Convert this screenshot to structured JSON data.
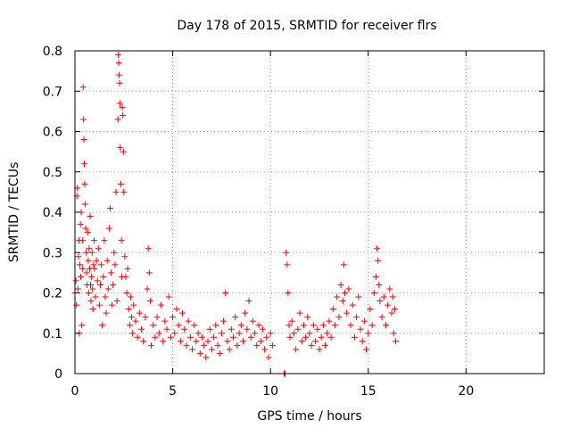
{
  "chart_data": {
    "type": "scatter",
    "title": "Day 178 of 2015, SRMTID for receiver flrs",
    "xlabel": "GPS time / hours",
    "ylabel": "SRMTID / TECUs",
    "xlim": [
      0,
      24
    ],
    "ylim": [
      0,
      0.8
    ],
    "xticks": [
      0,
      5,
      10,
      15,
      20
    ],
    "xtick_labels": [
      "0",
      "5",
      "10",
      "15",
      "20"
    ],
    "yticks": [
      0,
      0.1,
      0.2,
      0.3,
      0.4,
      0.5,
      0.6,
      0.7,
      0.8
    ],
    "ytick_labels": [
      "0",
      "0.1",
      "0.2",
      "0.3",
      "0.4",
      "0.5",
      "0.6",
      "0.7",
      "0.8"
    ],
    "grid": true,
    "marker": "+",
    "color": "#ff0000",
    "series": [
      {
        "name": "SRMTID flrs",
        "points": [
          [
            0.0,
            0.2
          ],
          [
            0.05,
            0.23
          ],
          [
            0.08,
            0.17
          ],
          [
            0.1,
            0.44
          ],
          [
            0.12,
            0.46
          ],
          [
            0.15,
            0.21
          ],
          [
            0.18,
            0.29
          ],
          [
            0.2,
            0.33
          ],
          [
            0.22,
            0.1
          ],
          [
            0.25,
            0.27
          ],
          [
            0.28,
            0.37
          ],
          [
            0.3,
            0.24
          ],
          [
            0.32,
            0.4
          ],
          [
            0.35,
            0.12
          ],
          [
            0.38,
            0.26
          ],
          [
            0.4,
            0.33
          ],
          [
            0.42,
            0.71
          ],
          [
            0.44,
            0.63
          ],
          [
            0.46,
            0.58
          ],
          [
            0.48,
            0.52
          ],
          [
            0.5,
            0.47
          ],
          [
            0.52,
            0.42
          ],
          [
            0.55,
            0.36
          ],
          [
            0.58,
            0.3
          ],
          [
            0.6,
            0.25
          ],
          [
            0.62,
            0.22
          ],
          [
            0.65,
            0.35
          ],
          [
            0.68,
            0.28
          ],
          [
            0.7,
            0.2
          ],
          [
            0.72,
            0.31
          ],
          [
            0.75,
            0.26
          ],
          [
            0.78,
            0.39
          ],
          [
            0.8,
            0.22
          ],
          [
            0.82,
            0.18
          ],
          [
            0.85,
            0.24
          ],
          [
            0.88,
            0.3
          ],
          [
            0.9,
            0.21
          ],
          [
            0.92,
            0.16
          ],
          [
            0.95,
            0.27
          ],
          [
            0.98,
            0.33
          ],
          [
            1.0,
            0.26
          ],
          [
            1.05,
            0.19
          ],
          [
            1.1,
            0.28
          ],
          [
            1.15,
            0.23
          ],
          [
            1.2,
            0.31
          ],
          [
            1.25,
            0.17
          ],
          [
            1.3,
            0.22
          ],
          [
            1.35,
            0.27
          ],
          [
            1.4,
            0.12
          ],
          [
            1.45,
            0.24
          ],
          [
            1.5,
            0.33
          ],
          [
            1.55,
            0.19
          ],
          [
            1.6,
            0.15
          ],
          [
            1.65,
            0.28
          ],
          [
            1.7,
            0.21
          ],
          [
            1.75,
            0.36
          ],
          [
            1.8,
            0.41
          ],
          [
            1.85,
            0.25
          ],
          [
            1.9,
            0.17
          ],
          [
            1.95,
            0.22
          ],
          [
            2.0,
            0.3
          ],
          [
            2.05,
            0.27
          ],
          [
            2.1,
            0.45
          ],
          [
            2.15,
            0.18
          ],
          [
            2.2,
            0.63
          ],
          [
            2.22,
            0.79
          ],
          [
            2.24,
            0.77
          ],
          [
            2.26,
            0.74
          ],
          [
            2.28,
            0.72
          ],
          [
            2.3,
            0.67
          ],
          [
            2.32,
            0.56
          ],
          [
            2.35,
            0.47
          ],
          [
            2.38,
            0.33
          ],
          [
            2.4,
            0.24
          ],
          [
            2.42,
            0.66
          ],
          [
            2.45,
            0.64
          ],
          [
            2.48,
            0.55
          ],
          [
            2.5,
            0.45
          ],
          [
            2.55,
            0.29
          ],
          [
            2.6,
            0.24
          ],
          [
            2.65,
            0.2
          ],
          [
            2.7,
            0.26
          ],
          [
            2.75,
            0.16
          ],
          [
            2.8,
            0.12
          ],
          [
            2.85,
            0.19
          ],
          [
            2.9,
            0.14
          ],
          [
            2.95,
            0.1
          ],
          [
            3.0,
            0.17
          ],
          [
            3.1,
            0.13
          ],
          [
            3.2,
            0.09
          ],
          [
            3.3,
            0.15
          ],
          [
            3.4,
            0.11
          ],
          [
            3.5,
            0.08
          ],
          [
            3.6,
            0.14
          ],
          [
            3.7,
            0.21
          ],
          [
            3.75,
            0.31
          ],
          [
            3.8,
            0.25
          ],
          [
            3.85,
            0.18
          ],
          [
            3.9,
            0.07
          ],
          [
            4.0,
            0.12
          ],
          [
            4.1,
            0.09
          ],
          [
            4.2,
            0.14
          ],
          [
            4.3,
            0.1
          ],
          [
            4.4,
            0.17
          ],
          [
            4.5,
            0.08
          ],
          [
            4.6,
            0.13
          ],
          [
            4.7,
            0.11
          ],
          [
            4.8,
            0.19
          ],
          [
            4.9,
            0.09
          ],
          [
            5.0,
            0.14
          ],
          [
            5.1,
            0.1
          ],
          [
            5.2,
            0.16
          ],
          [
            5.3,
            0.12
          ],
          [
            5.4,
            0.08
          ],
          [
            5.5,
            0.15
          ],
          [
            5.6,
            0.11
          ],
          [
            5.7,
            0.07
          ],
          [
            5.8,
            0.13
          ],
          [
            5.9,
            0.09
          ],
          [
            6.0,
            0.06
          ],
          [
            6.1,
            0.12
          ],
          [
            6.2,
            0.08
          ],
          [
            6.3,
            0.1
          ],
          [
            6.4,
            0.05
          ],
          [
            6.5,
            0.09
          ],
          [
            6.6,
            0.07
          ],
          [
            6.7,
            0.04
          ],
          [
            6.8,
            0.08
          ],
          [
            6.9,
            0.11
          ],
          [
            7.0,
            0.06
          ],
          [
            7.1,
            0.09
          ],
          [
            7.2,
            0.12
          ],
          [
            7.3,
            0.07
          ],
          [
            7.4,
            0.05
          ],
          [
            7.5,
            0.1
          ],
          [
            7.6,
            0.13
          ],
          [
            7.7,
            0.2
          ],
          [
            7.8,
            0.08
          ],
          [
            7.9,
            0.06
          ],
          [
            8.0,
            0.11
          ],
          [
            8.1,
            0.09
          ],
          [
            8.2,
            0.14
          ],
          [
            8.3,
            0.07
          ],
          [
            8.4,
            0.1
          ],
          [
            8.5,
            0.12
          ],
          [
            8.6,
            0.08
          ],
          [
            8.7,
            0.15
          ],
          [
            8.8,
            0.11
          ],
          [
            8.9,
            0.18
          ],
          [
            9.0,
            0.09
          ],
          [
            9.1,
            0.13
          ],
          [
            9.2,
            0.1
          ],
          [
            9.3,
            0.07
          ],
          [
            9.4,
            0.12
          ],
          [
            9.5,
            0.08
          ],
          [
            9.6,
            0.11
          ],
          [
            9.7,
            0.06
          ],
          [
            9.8,
            0.09
          ],
          [
            9.9,
            0.04
          ],
          [
            10.0,
            0.1
          ],
          [
            10.1,
            0.07
          ],
          [
            10.7,
            0.0
          ],
          [
            10.75,
            0.0
          ],
          [
            10.8,
            0.3
          ],
          [
            10.85,
            0.27
          ],
          [
            10.9,
            0.2
          ],
          [
            10.95,
            0.12
          ],
          [
            11.0,
            0.09
          ],
          [
            11.1,
            0.13
          ],
          [
            11.2,
            0.1
          ],
          [
            11.3,
            0.06
          ],
          [
            11.4,
            0.11
          ],
          [
            11.5,
            0.15
          ],
          [
            11.6,
            0.08
          ],
          [
            11.7,
            0.12
          ],
          [
            11.8,
            0.09
          ],
          [
            11.9,
            0.14
          ],
          [
            12.0,
            0.1
          ],
          [
            12.1,
            0.07
          ],
          [
            12.2,
            0.12
          ],
          [
            12.3,
            0.08
          ],
          [
            12.4,
            0.11
          ],
          [
            12.5,
            0.06
          ],
          [
            12.6,
            0.09
          ],
          [
            12.7,
            0.12
          ],
          [
            12.8,
            0.07
          ],
          [
            12.9,
            0.1
          ],
          [
            13.0,
            0.13
          ],
          [
            13.1,
            0.09
          ],
          [
            13.2,
            0.16
          ],
          [
            13.3,
            0.12
          ],
          [
            13.4,
            0.19
          ],
          [
            13.5,
            0.14
          ],
          [
            13.6,
            0.22
          ],
          [
            13.7,
            0.18
          ],
          [
            13.75,
            0.27
          ],
          [
            13.8,
            0.2
          ],
          [
            13.9,
            0.15
          ],
          [
            14.0,
            0.21
          ],
          [
            14.1,
            0.12
          ],
          [
            14.2,
            0.17
          ],
          [
            14.3,
            0.09
          ],
          [
            14.4,
            0.14
          ],
          [
            14.5,
            0.19
          ],
          [
            14.6,
            0.11
          ],
          [
            14.7,
            0.08
          ],
          [
            14.8,
            0.13
          ],
          [
            14.9,
            0.06
          ],
          [
            15.0,
            0.1
          ],
          [
            15.1,
            0.16
          ],
          [
            15.2,
            0.12
          ],
          [
            15.3,
            0.2
          ],
          [
            15.4,
            0.24
          ],
          [
            15.45,
            0.31
          ],
          [
            15.5,
            0.28
          ],
          [
            15.55,
            0.22
          ],
          [
            15.6,
            0.18
          ],
          [
            15.7,
            0.14
          ],
          [
            15.8,
            0.19
          ],
          [
            15.9,
            0.12
          ],
          [
            16.0,
            0.17
          ],
          [
            16.1,
            0.21
          ],
          [
            16.2,
            0.15
          ],
          [
            16.25,
            0.19
          ],
          [
            16.3,
            0.1
          ],
          [
            16.35,
            0.16
          ],
          [
            16.4,
            0.08
          ]
        ]
      }
    ]
  }
}
